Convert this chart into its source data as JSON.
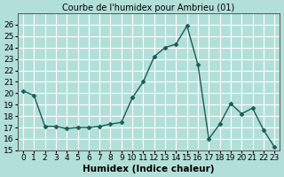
{
  "x": [
    0,
    1,
    2,
    3,
    4,
    5,
    6,
    7,
    8,
    9,
    10,
    11,
    12,
    13,
    14,
    15,
    16,
    17,
    18,
    19,
    20,
    21,
    22,
    23
  ],
  "y": [
    20.2,
    19.8,
    17.1,
    17.1,
    16.9,
    17.0,
    17.0,
    17.1,
    17.3,
    17.45,
    19.6,
    21.0,
    23.2,
    24.0,
    24.3,
    25.9,
    22.5,
    16.0,
    17.3,
    19.1,
    18.2,
    18.7,
    16.8,
    15.3
  ],
  "title": "Courbe de l'humidex pour Ambrieu (01)",
  "xlabel": "Humidex (Indice chaleur)",
  "ylabel": "",
  "xlim": [
    -0.5,
    23.5
  ],
  "ylim": [
    15,
    27
  ],
  "yticks": [
    15,
    16,
    17,
    18,
    19,
    20,
    21,
    22,
    23,
    24,
    25,
    26
  ],
  "xticks": [
    0,
    1,
    2,
    3,
    4,
    5,
    6,
    7,
    8,
    9,
    10,
    11,
    12,
    13,
    14,
    15,
    16,
    17,
    18,
    19,
    20,
    21,
    22,
    23
  ],
  "line_color": "#1a5c52",
  "marker": "D",
  "marker_size": 2.5,
  "bg_color": "#b2e0d8",
  "grid_color": "#ffffff",
  "title_fontsize": 7.0,
  "axis_fontsize": 7.5,
  "tick_fontsize": 6.5
}
